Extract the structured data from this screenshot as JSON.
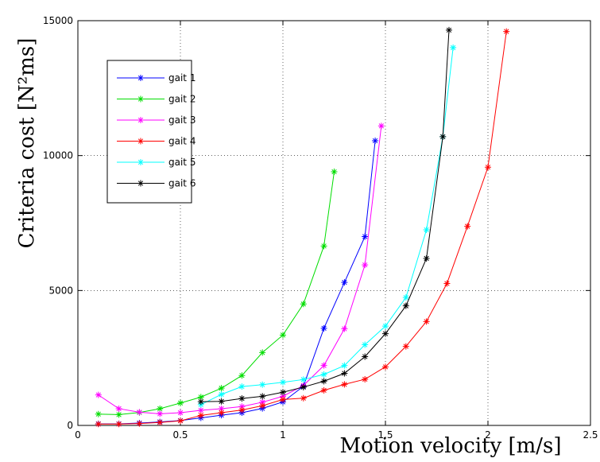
{
  "chart_data": {
    "type": "line",
    "title": "",
    "xlabel": "Motion velocity [m/s]",
    "ylabel": "Criteria cost [N²ms]",
    "xlim": [
      0,
      2.5
    ],
    "ylim": [
      0,
      15000
    ],
    "xticks": [
      0,
      0.5,
      1,
      1.5,
      2,
      2.5
    ],
    "xtick_labels": [
      "0",
      "0.5",
      "1",
      "1.5",
      "2",
      "2.5"
    ],
    "yticks": [
      0,
      5000,
      10000,
      15000
    ],
    "ytick_labels": [
      "0",
      "5000",
      "10000",
      "15000"
    ],
    "grid": true,
    "grid_style": "dotted",
    "legend_position": "upper-left",
    "marker": "asterisk",
    "series": [
      {
        "name": "gait 1",
        "color": "#0000ff",
        "x": [
          0.1,
          0.2,
          0.3,
          0.4,
          0.5,
          0.6,
          0.7,
          0.8,
          0.9,
          1.0,
          1.1,
          1.2,
          1.3,
          1.4,
          1.45
        ],
        "y": [
          60,
          60,
          90,
          130,
          180,
          280,
          380,
          470,
          630,
          870,
          1450,
          3600,
          5300,
          7000,
          10550
        ]
      },
      {
        "name": "gait 2",
        "color": "#00dd00",
        "x": [
          0.1,
          0.2,
          0.3,
          0.4,
          0.5,
          0.6,
          0.7,
          0.8,
          0.9,
          1.0,
          1.1,
          1.2,
          1.25
        ],
        "y": [
          420,
          400,
          480,
          620,
          830,
          1050,
          1380,
          1850,
          2700,
          3350,
          4500,
          6650,
          9400
        ]
      },
      {
        "name": "gait 3",
        "color": "#ff00ff",
        "x": [
          0.1,
          0.2,
          0.3,
          0.4,
          0.5,
          0.6,
          0.7,
          0.8,
          0.9,
          1.0,
          1.1,
          1.2,
          1.3,
          1.4,
          1.48
        ],
        "y": [
          1130,
          620,
          490,
          430,
          470,
          560,
          620,
          700,
          860,
          1080,
          1480,
          2220,
          3580,
          5950,
          11100
        ]
      },
      {
        "name": "gait 4",
        "color": "#ff0000",
        "x": [
          0.1,
          0.2,
          0.3,
          0.4,
          0.5,
          0.6,
          0.7,
          0.8,
          0.9,
          1.0,
          1.1,
          1.2,
          1.3,
          1.4,
          1.5,
          1.6,
          1.7,
          1.8,
          1.9,
          2.0,
          2.09
        ],
        "y": [
          50,
          50,
          70,
          110,
          170,
          370,
          470,
          570,
          730,
          960,
          1010,
          1300,
          1520,
          1710,
          2170,
          2930,
          3850,
          5260,
          7380,
          9570,
          14600
        ]
      },
      {
        "name": "gait 5",
        "color": "#00ffff",
        "x": [
          0.6,
          0.7,
          0.8,
          0.9,
          1.0,
          1.1,
          1.2,
          1.3,
          1.4,
          1.5,
          1.6,
          1.7,
          1.78,
          1.83
        ],
        "y": [
          770,
          1150,
          1440,
          1510,
          1600,
          1700,
          1890,
          2220,
          2990,
          3680,
          4740,
          7250,
          10700,
          14000
        ]
      },
      {
        "name": "gait 6",
        "color": "#000000",
        "x": [
          0.6,
          0.7,
          0.8,
          0.9,
          1.0,
          1.1,
          1.2,
          1.3,
          1.4,
          1.5,
          1.6,
          1.7,
          1.78,
          1.81
        ],
        "y": [
          880,
          890,
          1000,
          1080,
          1230,
          1420,
          1640,
          1930,
          2550,
          3400,
          4430,
          6190,
          10700,
          14650
        ]
      }
    ]
  }
}
